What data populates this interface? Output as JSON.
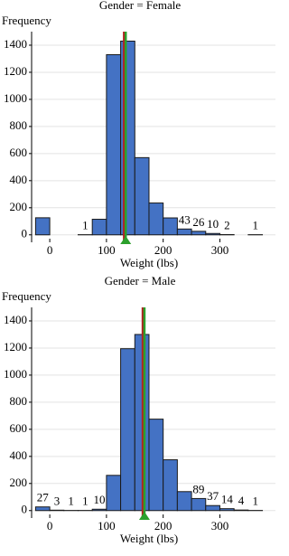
{
  "chart_data": [
    {
      "type": "histogram",
      "title": "Gender = Female",
      "y_label": "Frequency",
      "x_label": "Weight (lbs)",
      "bins": [
        -25,
        0,
        25,
        50,
        75,
        100,
        125,
        150,
        175,
        200,
        225,
        250,
        275,
        300,
        325,
        350,
        375
      ],
      "values": [
        126,
        0,
        0,
        1,
        115,
        1330,
        1430,
        570,
        235,
        125,
        43,
        26,
        10,
        2,
        0,
        1
      ],
      "value_labels": [
        null,
        null,
        null,
        "1",
        null,
        null,
        null,
        null,
        null,
        null,
        "43",
        "26",
        "10",
        "2",
        null,
        "1"
      ],
      "color": "#4472c4",
      "xlim": [
        -32,
        398
      ],
      "ylim": [
        -55,
        1500
      ],
      "xticks": [
        0,
        100,
        200,
        300
      ],
      "yticks": [
        0,
        200,
        400,
        600,
        800,
        1000,
        1200,
        1400
      ],
      "grid": true,
      "vlines": [
        {
          "value": 131,
          "color": "#b22222"
        },
        {
          "value": 134,
          "color": "#2ca02c"
        }
      ]
    },
    {
      "type": "histogram",
      "title": "Gender = Male",
      "y_label": "Frequency",
      "x_label": "Weight (lbs)",
      "bins": [
        -25,
        0,
        25,
        50,
        75,
        100,
        125,
        150,
        175,
        200,
        225,
        250,
        275,
        300,
        325,
        350,
        375
      ],
      "values": [
        27,
        3,
        1,
        1,
        10,
        260,
        1195,
        1300,
        675,
        375,
        140,
        89,
        37,
        14,
        4,
        1
      ],
      "value_labels": [
        "27",
        "3",
        "1",
        "1",
        "10",
        null,
        null,
        null,
        null,
        null,
        null,
        "89",
        "37",
        "14",
        "4",
        "1"
      ],
      "color": "#4472c4",
      "xlim": [
        -32,
        398
      ],
      "ylim": [
        -55,
        1500
      ],
      "xticks": [
        0,
        100,
        200,
        300
      ],
      "yticks": [
        0,
        200,
        400,
        600,
        800,
        1000,
        1200,
        1400
      ],
      "grid": true,
      "vlines": [
        {
          "value": 164,
          "color": "#b22222"
        },
        {
          "value": 167,
          "color": "#2ca02c"
        }
      ]
    }
  ]
}
